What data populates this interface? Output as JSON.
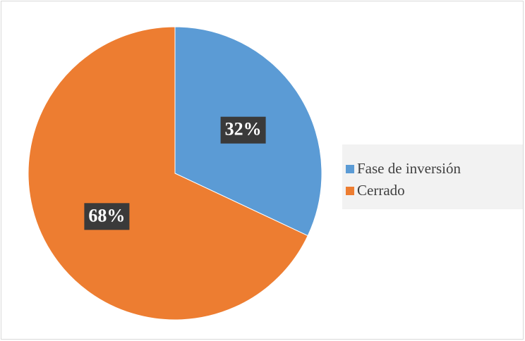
{
  "chart_data": {
    "type": "pie",
    "categories": [
      "Fase de inversión",
      "Cerrado"
    ],
    "values": [
      32,
      68
    ],
    "value_labels": [
      "32%",
      "68%"
    ],
    "colors": [
      "#5b9bd5",
      "#ed7d31"
    ],
    "legend": "right"
  }
}
